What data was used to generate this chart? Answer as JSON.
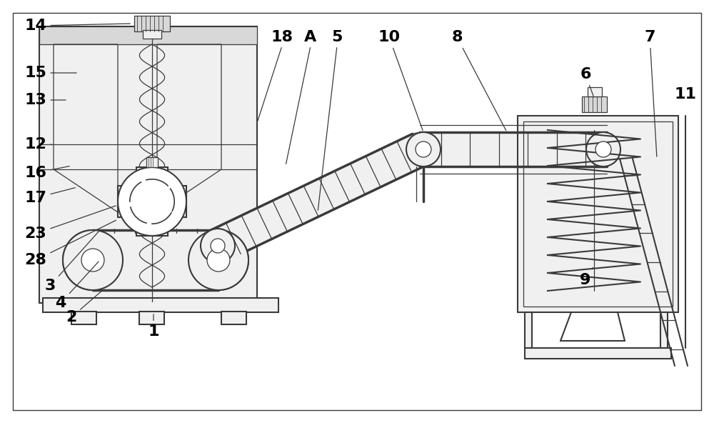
{
  "bg_color": "#ffffff",
  "line_color": "#3a3a3a",
  "fill_light": "#f0f0f0",
  "fill_medium": "#d8d8d8",
  "label_fontsize": 16,
  "dpi": 100,
  "figw": 10.0,
  "figh": 5.92
}
